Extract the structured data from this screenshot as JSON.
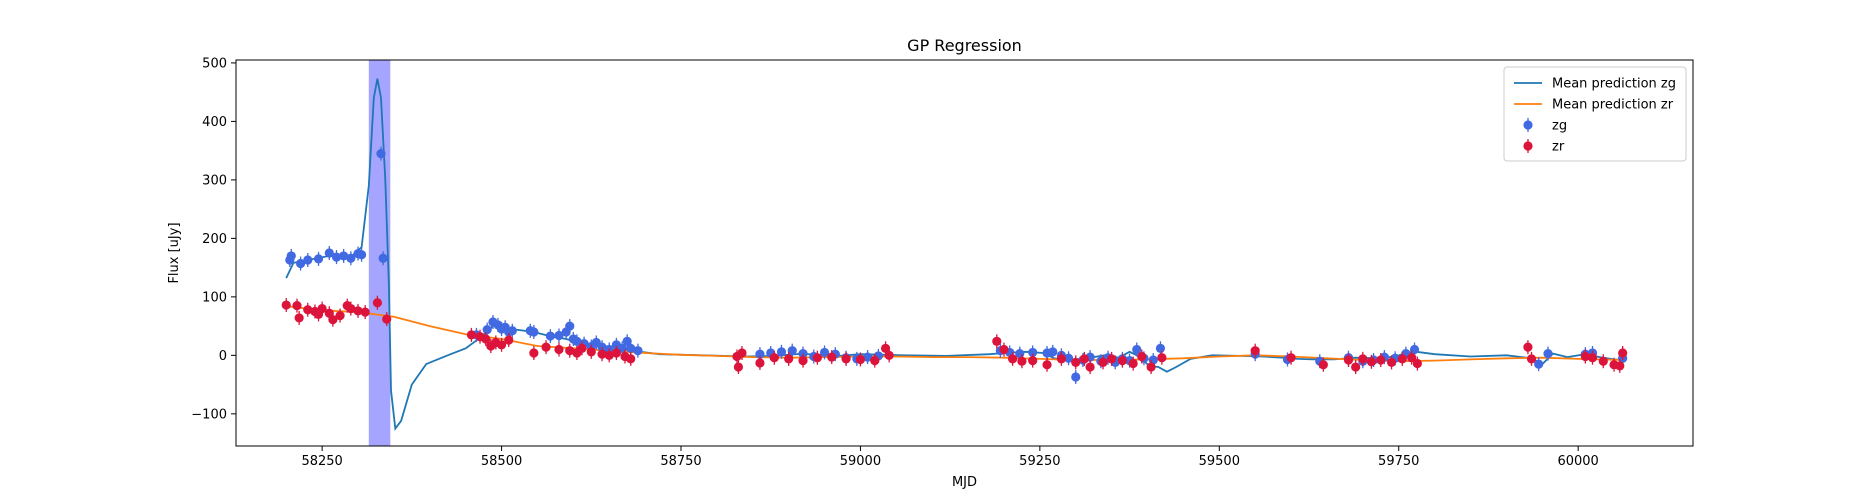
{
  "chart_data": {
    "type": "line",
    "title": "GP Regression",
    "xlabel": "MJD",
    "ylabel": "Flux [uJy]",
    "xlim": [
      58130,
      60160
    ],
    "ylim": [
      -155,
      505
    ],
    "xticks": [
      58250,
      58500,
      58750,
      59000,
      59250,
      59500,
      59750,
      60000
    ],
    "yticks": [
      -100,
      0,
      100,
      200,
      300,
      400,
      500
    ],
    "grid": false,
    "legend_position": "top-right",
    "highlight_band": {
      "x0": 58315,
      "x1": 58345,
      "color": "#a0a0ff"
    },
    "series": [
      {
        "name": "Mean prediction zg",
        "kind": "line",
        "color": "#1f77b4",
        "points": [
          [
            58200,
            132
          ],
          [
            58210,
            158
          ],
          [
            58230,
            163
          ],
          [
            58260,
            170
          ],
          [
            58290,
            168
          ],
          [
            58305,
            185
          ],
          [
            58315,
            290
          ],
          [
            58322,
            440
          ],
          [
            58327,
            473
          ],
          [
            58332,
            440
          ],
          [
            58338,
            300
          ],
          [
            58343,
            120
          ],
          [
            58346,
            -60
          ],
          [
            58352,
            -125
          ],
          [
            58360,
            -112
          ],
          [
            58375,
            -50
          ],
          [
            58395,
            -15
          ],
          [
            58425,
            0
          ],
          [
            58450,
            12
          ],
          [
            58470,
            30
          ],
          [
            58490,
            52
          ],
          [
            58520,
            44
          ],
          [
            58545,
            40
          ],
          [
            58570,
            32
          ],
          [
            58590,
            28
          ],
          [
            58615,
            20
          ],
          [
            58640,
            16
          ],
          [
            58660,
            14
          ],
          [
            58680,
            8
          ],
          [
            58720,
            2
          ],
          [
            58780,
            0
          ],
          [
            58840,
            -2
          ],
          [
            58880,
            -1
          ],
          [
            58920,
            3
          ],
          [
            58960,
            -2
          ],
          [
            59000,
            2
          ],
          [
            59060,
            0
          ],
          [
            59120,
            -1
          ],
          [
            59180,
            2
          ],
          [
            59200,
            4
          ],
          [
            59230,
            6
          ],
          [
            59255,
            4
          ],
          [
            59270,
            -5
          ],
          [
            59290,
            -8
          ],
          [
            59310,
            -6
          ],
          [
            59340,
            0
          ],
          [
            59360,
            -4
          ],
          [
            59375,
            6
          ],
          [
            59390,
            -3
          ],
          [
            59402,
            -18
          ],
          [
            59415,
            -20
          ],
          [
            59427,
            -28
          ],
          [
            59440,
            -20
          ],
          [
            59460,
            -6
          ],
          [
            59490,
            0
          ],
          [
            59530,
            -1
          ],
          [
            59560,
            -2
          ],
          [
            59590,
            -4
          ],
          [
            59610,
            -6
          ],
          [
            59630,
            -7
          ],
          [
            59660,
            -7
          ],
          [
            59690,
            -4
          ],
          [
            59720,
            -5
          ],
          [
            59745,
            -2
          ],
          [
            59760,
            4
          ],
          [
            59775,
            6
          ],
          [
            59800,
            2
          ],
          [
            59850,
            -2
          ],
          [
            59900,
            0
          ],
          [
            59935,
            -5
          ],
          [
            59950,
            -15
          ],
          [
            59965,
            3
          ],
          [
            59985,
            -3
          ],
          [
            60010,
            2
          ],
          [
            60030,
            -3
          ],
          [
            60050,
            -7
          ],
          [
            60062,
            -8
          ]
        ]
      },
      {
        "name": "Mean prediction zr",
        "kind": "line",
        "color": "#ff7f0e",
        "points": [
          [
            58200,
            84
          ],
          [
            58250,
            77
          ],
          [
            58300,
            74
          ],
          [
            58350,
            66
          ],
          [
            58400,
            50
          ],
          [
            58450,
            36
          ],
          [
            58500,
            28
          ],
          [
            58550,
            16
          ],
          [
            58600,
            12
          ],
          [
            58650,
            8
          ],
          [
            58700,
            4
          ],
          [
            58750,
            1
          ],
          [
            58800,
            -1
          ],
          [
            58850,
            -3
          ],
          [
            58900,
            -4
          ],
          [
            58950,
            -3
          ],
          [
            59000,
            -2
          ],
          [
            59050,
            -2
          ],
          [
            59100,
            -3
          ],
          [
            59150,
            -3
          ],
          [
            59200,
            -4
          ],
          [
            59250,
            -6
          ],
          [
            59300,
            -8
          ],
          [
            59350,
            -8
          ],
          [
            59400,
            -7
          ],
          [
            59450,
            -5
          ],
          [
            59500,
            -2
          ],
          [
            59550,
            0
          ],
          [
            59600,
            -2
          ],
          [
            59650,
            -5
          ],
          [
            59700,
            -8
          ],
          [
            59750,
            -10
          ],
          [
            59800,
            -9
          ],
          [
            59850,
            -7
          ],
          [
            59900,
            -5
          ],
          [
            59950,
            -4
          ],
          [
            60000,
            -6
          ],
          [
            60062,
            -8
          ]
        ]
      },
      {
        "name": "zg",
        "kind": "points",
        "color": "#4169e1",
        "points": [
          [
            58205,
            163
          ],
          [
            58207,
            170
          ],
          [
            58220,
            157
          ],
          [
            58230,
            163
          ],
          [
            58245,
            165
          ],
          [
            58260,
            175
          ],
          [
            58270,
            168
          ],
          [
            58280,
            170
          ],
          [
            58290,
            166
          ],
          [
            58300,
            174
          ],
          [
            58305,
            172
          ],
          [
            58332,
            345
          ],
          [
            58335,
            166
          ],
          [
            58465,
            35
          ],
          [
            58480,
            44
          ],
          [
            58488,
            57
          ],
          [
            58495,
            52
          ],
          [
            58500,
            45
          ],
          [
            58505,
            48
          ],
          [
            58510,
            40
          ],
          [
            58515,
            42
          ],
          [
            58540,
            42
          ],
          [
            58545,
            40
          ],
          [
            58568,
            33
          ],
          [
            58580,
            34
          ],
          [
            58590,
            40
          ],
          [
            58595,
            50
          ],
          [
            58600,
            28
          ],
          [
            58605,
            24
          ],
          [
            58615,
            20
          ],
          [
            58625,
            15
          ],
          [
            58632,
            22
          ],
          [
            58640,
            14
          ],
          [
            58650,
            10
          ],
          [
            58660,
            18
          ],
          [
            58668,
            12
          ],
          [
            58675,
            24
          ],
          [
            58680,
            12
          ],
          [
            58690,
            8
          ],
          [
            58860,
            2
          ],
          [
            58875,
            4
          ],
          [
            58890,
            6
          ],
          [
            58905,
            8
          ],
          [
            58920,
            3
          ],
          [
            58935,
            -2
          ],
          [
            58950,
            5
          ],
          [
            58965,
            2
          ],
          [
            58980,
            -4
          ],
          [
            58995,
            -6
          ],
          [
            59010,
            -3
          ],
          [
            59025,
            -1
          ],
          [
            59195,
            8
          ],
          [
            59208,
            5
          ],
          [
            59222,
            3
          ],
          [
            59240,
            5
          ],
          [
            59260,
            4
          ],
          [
            59268,
            6
          ],
          [
            59280,
            0
          ],
          [
            59290,
            -5
          ],
          [
            59300,
            -37
          ],
          [
            59310,
            -8
          ],
          [
            59320,
            -3
          ],
          [
            59335,
            -10
          ],
          [
            59345,
            -4
          ],
          [
            59355,
            -12
          ],
          [
            59365,
            -6
          ],
          [
            59375,
            -9
          ],
          [
            59385,
            10
          ],
          [
            59395,
            -5
          ],
          [
            59408,
            -8
          ],
          [
            59418,
            12
          ],
          [
            59550,
            2
          ],
          [
            59595,
            -7
          ],
          [
            59640,
            -10
          ],
          [
            59680,
            -4
          ],
          [
            59700,
            -10
          ],
          [
            59715,
            -8
          ],
          [
            59730,
            -3
          ],
          [
            59745,
            -5
          ],
          [
            59760,
            3
          ],
          [
            59772,
            10
          ],
          [
            59945,
            -15
          ],
          [
            59958,
            3
          ],
          [
            60010,
            2
          ],
          [
            60020,
            4
          ],
          [
            60062,
            -5
          ]
        ]
      },
      {
        "name": "zr",
        "kind": "points",
        "color": "#dc143c",
        "points": [
          [
            58200,
            86
          ],
          [
            58215,
            85
          ],
          [
            58218,
            64
          ],
          [
            58230,
            78
          ],
          [
            58240,
            75
          ],
          [
            58245,
            70
          ],
          [
            58250,
            80
          ],
          [
            58260,
            72
          ],
          [
            58265,
            61
          ],
          [
            58275,
            68
          ],
          [
            58285,
            85
          ],
          [
            58290,
            80
          ],
          [
            58300,
            76
          ],
          [
            58310,
            74
          ],
          [
            58327,
            90
          ],
          [
            58340,
            62
          ],
          [
            58458,
            35
          ],
          [
            58470,
            32
          ],
          [
            58478,
            28
          ],
          [
            58485,
            16
          ],
          [
            58492,
            22
          ],
          [
            58500,
            18
          ],
          [
            58510,
            26
          ],
          [
            58545,
            4
          ],
          [
            58562,
            14
          ],
          [
            58580,
            10
          ],
          [
            58595,
            8
          ],
          [
            58605,
            4
          ],
          [
            58612,
            12
          ],
          [
            58625,
            6
          ],
          [
            58640,
            2
          ],
          [
            58650,
            0
          ],
          [
            58660,
            4
          ],
          [
            58672,
            -2
          ],
          [
            58680,
            -6
          ],
          [
            58828,
            -2
          ],
          [
            58830,
            -20
          ],
          [
            58835,
            4
          ],
          [
            58860,
            -13
          ],
          [
            58880,
            -4
          ],
          [
            58900,
            -6
          ],
          [
            58920,
            -9
          ],
          [
            58940,
            -4
          ],
          [
            58960,
            -3
          ],
          [
            58980,
            -6
          ],
          [
            59000,
            -7
          ],
          [
            59020,
            -9
          ],
          [
            59035,
            12
          ],
          [
            59040,
            0
          ],
          [
            59190,
            24
          ],
          [
            59200,
            10
          ],
          [
            59212,
            -6
          ],
          [
            59225,
            -10
          ],
          [
            59240,
            -9
          ],
          [
            59260,
            -16
          ],
          [
            59280,
            -6
          ],
          [
            59300,
            -12
          ],
          [
            59312,
            -6
          ],
          [
            59320,
            -20
          ],
          [
            59338,
            -12
          ],
          [
            59350,
            -6
          ],
          [
            59365,
            -9
          ],
          [
            59380,
            -14
          ],
          [
            59392,
            -2
          ],
          [
            59405,
            -20
          ],
          [
            59420,
            -4
          ],
          [
            59550,
            8
          ],
          [
            59600,
            -4
          ],
          [
            59645,
            -16
          ],
          [
            59680,
            -8
          ],
          [
            59690,
            -20
          ],
          [
            59700,
            -6
          ],
          [
            59712,
            -11
          ],
          [
            59725,
            -8
          ],
          [
            59740,
            -12
          ],
          [
            59755,
            -6
          ],
          [
            59768,
            -4
          ],
          [
            59776,
            -14
          ],
          [
            59930,
            14
          ],
          [
            59935,
            -6
          ],
          [
            60010,
            -2
          ],
          [
            60020,
            -4
          ],
          [
            60035,
            -10
          ],
          [
            60050,
            -16
          ],
          [
            60058,
            -18
          ],
          [
            60062,
            4
          ]
        ]
      }
    ]
  }
}
